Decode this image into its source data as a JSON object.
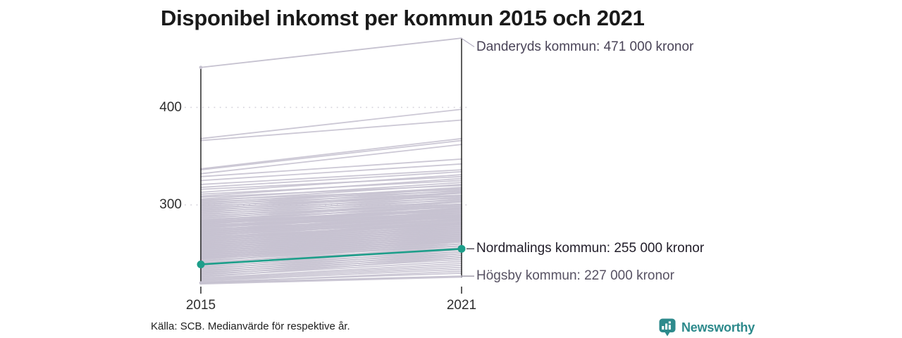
{
  "title": "Disponibel inkomst per kommun 2015 och 2021",
  "source": "Källa: SCB. Medianvärde för respektive år.",
  "logo": {
    "text": "Newsworthy",
    "color": "#2d8a8c",
    "icon": "newsworthy-bar-chart-speech-bubble"
  },
  "chart_data": {
    "type": "line",
    "subtype": "slopegraph",
    "title": "Disponibel inkomst per kommun 2015 och 2021",
    "x": [
      "2015",
      "2021"
    ],
    "unit": "tusen kronor (1000 kronor)",
    "ylabel": "",
    "xlabel": "",
    "y_ticks": [
      300,
      400
    ],
    "ylim": [
      215,
      480
    ],
    "grid": "dotted horizontal lines at y ticks",
    "legend": "none (direct labels at right)",
    "colors": {
      "highlight": "#1d9e8a",
      "background_line": "#c6c2d0",
      "axis": "#1a1a1a",
      "gridline": "#d4d1da"
    },
    "series": [
      {
        "name": "Danderyds kommun",
        "values": [
          441,
          471
        ],
        "label": "Danderyds kommun: 471 000 kronor",
        "highlight": false,
        "connector_color": "#b9b5c8"
      },
      {
        "name": "Nordmalings kommun",
        "values": [
          239,
          255
        ],
        "label": "Nordmalings kommun: 255 000 kronor",
        "highlight": true,
        "connector_color": "#3f3a46"
      },
      {
        "name": "Högsby kommun",
        "values": [
          220,
          227
        ],
        "label": "Högsby kommun: 227 000 kronor",
        "highlight": false,
        "connector_color": "#8f8a9b"
      }
    ],
    "background_series": [
      [
        368,
        398
      ],
      [
        366,
        387
      ],
      [
        337,
        368
      ],
      [
        336,
        366
      ],
      [
        332,
        362
      ],
      [
        329,
        347
      ],
      [
        325,
        342
      ],
      [
        321,
        336
      ],
      [
        318,
        334
      ],
      [
        316,
        329
      ],
      [
        313,
        331
      ],
      [
        311,
        325
      ],
      [
        309,
        327
      ],
      [
        308,
        320
      ],
      [
        306,
        323
      ],
      [
        305,
        316
      ],
      [
        304,
        321
      ],
      [
        303,
        314
      ],
      [
        302,
        318
      ],
      [
        301,
        312
      ],
      [
        300,
        317
      ],
      [
        299,
        310
      ],
      [
        298,
        315
      ],
      [
        297,
        309
      ],
      [
        296,
        313
      ],
      [
        295,
        307
      ],
      [
        294,
        312
      ],
      [
        293,
        305
      ],
      [
        292,
        310
      ],
      [
        291,
        303
      ],
      [
        290,
        308
      ],
      [
        289,
        301
      ],
      [
        288,
        306
      ],
      [
        287,
        300
      ],
      [
        286,
        304
      ],
      [
        285,
        298
      ],
      [
        284,
        303
      ],
      [
        283,
        296
      ],
      [
        282,
        301
      ],
      [
        281,
        294
      ],
      [
        280,
        299
      ],
      [
        279,
        292
      ],
      [
        278,
        297
      ],
      [
        277,
        290
      ],
      [
        276,
        296
      ],
      [
        275,
        288
      ],
      [
        274,
        294
      ],
      [
        273,
        287
      ],
      [
        272,
        292
      ],
      [
        271,
        285
      ],
      [
        270,
        290
      ],
      [
        269,
        283
      ],
      [
        268,
        288
      ],
      [
        267,
        281
      ],
      [
        266,
        286
      ],
      [
        265,
        280
      ],
      [
        264,
        284
      ],
      [
        263,
        278
      ],
      [
        262,
        282
      ],
      [
        261,
        276
      ],
      [
        260,
        280
      ],
      [
        259,
        274
      ],
      [
        258,
        278
      ],
      [
        257,
        272
      ],
      [
        256,
        276
      ],
      [
        255,
        270
      ],
      [
        254,
        274
      ],
      [
        253,
        268
      ],
      [
        252,
        272
      ],
      [
        251,
        266
      ],
      [
        250,
        270
      ],
      [
        249,
        264
      ],
      [
        248,
        268
      ],
      [
        247,
        262
      ],
      [
        246,
        266
      ],
      [
        245,
        260
      ],
      [
        244,
        264
      ],
      [
        243,
        258
      ],
      [
        242,
        262
      ],
      [
        241,
        256
      ],
      [
        240,
        260
      ],
      [
        239,
        254
      ],
      [
        238,
        258
      ],
      [
        237,
        252
      ],
      [
        236,
        256
      ],
      [
        235,
        250
      ],
      [
        234,
        254
      ],
      [
        233,
        248
      ],
      [
        232,
        252
      ],
      [
        231,
        246
      ],
      [
        230,
        250
      ],
      [
        229,
        244
      ],
      [
        228,
        248
      ],
      [
        227,
        242
      ],
      [
        226,
        246
      ],
      [
        225,
        240
      ],
      [
        224,
        238
      ],
      [
        223,
        236
      ],
      [
        222,
        234
      ],
      [
        221,
        230
      ],
      [
        220,
        232
      ],
      [
        219,
        226
      ],
      [
        284,
        299
      ],
      [
        282,
        295
      ],
      [
        280,
        297
      ],
      [
        278,
        291
      ],
      [
        276,
        293
      ],
      [
        274,
        289
      ],
      [
        272,
        288
      ],
      [
        270,
        286
      ],
      [
        268,
        285
      ],
      [
        266,
        282
      ],
      [
        264,
        281
      ],
      [
        262,
        279
      ],
      [
        260,
        277
      ],
      [
        258,
        275
      ],
      [
        256,
        273
      ],
      [
        254,
        271
      ],
      [
        252,
        269
      ],
      [
        250,
        267
      ],
      [
        248,
        265
      ],
      [
        246,
        263
      ],
      [
        283,
        294
      ],
      [
        281,
        292
      ],
      [
        279,
        290
      ],
      [
        277,
        289
      ],
      [
        275,
        287
      ],
      [
        273,
        285
      ],
      [
        271,
        284
      ],
      [
        269,
        282
      ],
      [
        267,
        280
      ],
      [
        265,
        278
      ],
      [
        263,
        276
      ],
      [
        261,
        274
      ],
      [
        259,
        272
      ],
      [
        257,
        270
      ],
      [
        255,
        268
      ],
      [
        253,
        266
      ],
      [
        251,
        264
      ],
      [
        249,
        262
      ],
      [
        247,
        260
      ],
      [
        245,
        258
      ]
    ]
  }
}
